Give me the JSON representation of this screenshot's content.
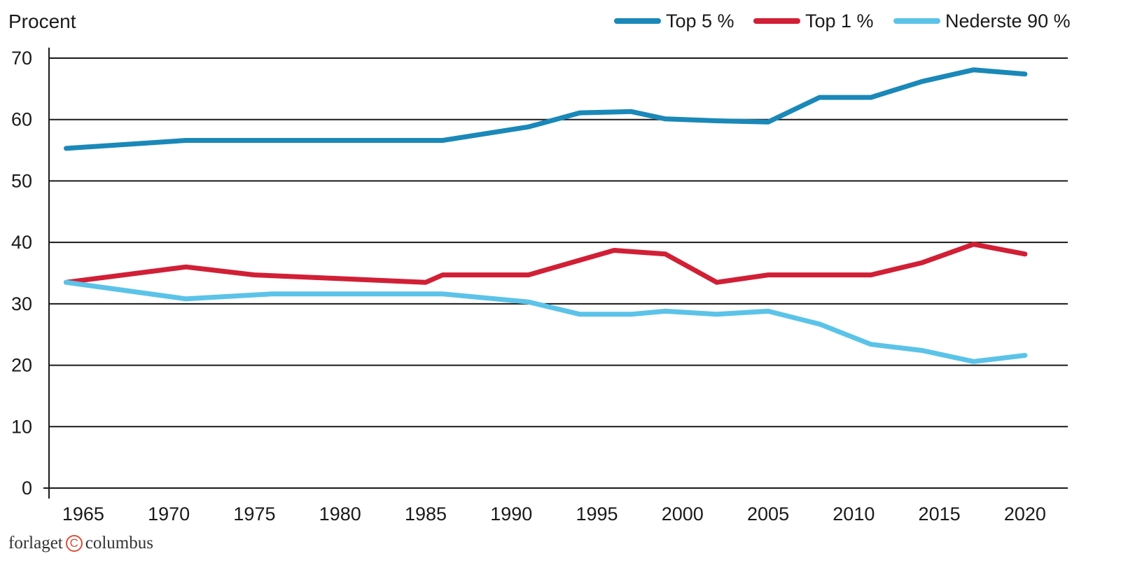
{
  "chart_data": {
    "type": "line",
    "ylabel": "Procent",
    "xlabel": "",
    "ylim": [
      0,
      70
    ],
    "xlim": [
      1963,
      2022.5
    ],
    "yticks": [
      0,
      10,
      20,
      30,
      40,
      50,
      60,
      70
    ],
    "xticks": [
      1965,
      1970,
      1975,
      1980,
      1985,
      1990,
      1995,
      2000,
      2005,
      2010,
      2015,
      2020
    ],
    "grid": true,
    "legend_position": "top-right",
    "series": [
      {
        "name": "Top 5 %",
        "color": "#1a88b8",
        "points": [
          [
            1964,
            55.3
          ],
          [
            1971,
            56.6
          ],
          [
            1976,
            56.6
          ],
          [
            1981,
            56.6
          ],
          [
            1986,
            56.6
          ],
          [
            1991,
            58.8
          ],
          [
            1994,
            61.1
          ],
          [
            1997,
            61.3
          ],
          [
            1999,
            60.1
          ],
          [
            2002,
            59.8
          ],
          [
            2005,
            59.6
          ],
          [
            2008,
            63.6
          ],
          [
            2011,
            63.6
          ],
          [
            2014,
            66.2
          ],
          [
            2017,
            68.1
          ],
          [
            2020,
            67.4
          ]
        ]
      },
      {
        "name": "Top 1 %",
        "color": "#d11f35",
        "points": [
          [
            1964,
            33.5
          ],
          [
            1971,
            36.0
          ],
          [
            1975,
            34.7
          ],
          [
            1985,
            33.5
          ],
          [
            1986,
            34.7
          ],
          [
            1991,
            34.7
          ],
          [
            1996,
            38.7
          ],
          [
            1999,
            38.1
          ],
          [
            2002,
            33.5
          ],
          [
            2005,
            34.7
          ],
          [
            2008,
            34.7
          ],
          [
            2011,
            34.7
          ],
          [
            2014,
            36.7
          ],
          [
            2017,
            39.7
          ],
          [
            2020,
            38.1
          ]
        ]
      },
      {
        "name": "Nederste 90 %",
        "color": "#5bc3e8",
        "points": [
          [
            1964,
            33.5
          ],
          [
            1971,
            30.8
          ],
          [
            1976,
            31.6
          ],
          [
            1986,
            31.6
          ],
          [
            1991,
            30.3
          ],
          [
            1994,
            28.3
          ],
          [
            1997,
            28.3
          ],
          [
            1999,
            28.8
          ],
          [
            2002,
            28.3
          ],
          [
            2005,
            28.8
          ],
          [
            2008,
            26.7
          ],
          [
            2011,
            23.4
          ],
          [
            2014,
            22.4
          ],
          [
            2017,
            20.6
          ],
          [
            2020,
            21.6
          ]
        ]
      }
    ]
  },
  "footer": {
    "publisher_left": "forlaget",
    "publisher_symbol": "C",
    "publisher_right": "columbus"
  }
}
